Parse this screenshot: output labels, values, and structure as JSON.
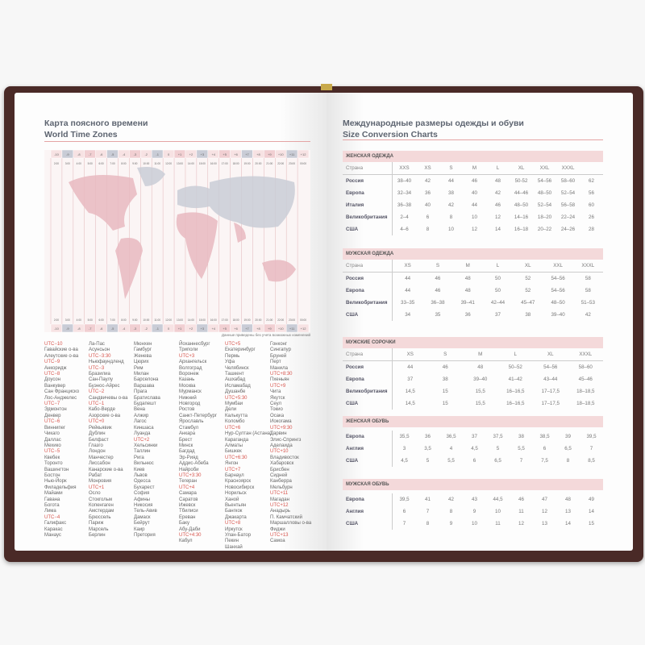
{
  "left_page": {
    "title_ru": "Карта поясного времени",
    "title_en": "World Time Zones",
    "zones": [
      "-10",
      "-9",
      "-8",
      "-7",
      "-6",
      "-5",
      "-4",
      "-3",
      "-2",
      "-1",
      "0",
      "+1",
      "+2",
      "+3",
      "+4",
      "+5",
      "+6",
      "+7",
      "+8",
      "+9",
      "+10",
      "+11",
      "+12"
    ],
    "times": [
      "2:00",
      "3:00",
      "4:00",
      "5:00",
      "6:00",
      "7:00",
      "8:00",
      "9:00",
      "10:00",
      "11:00",
      "12:00",
      "13:00",
      "14:00",
      "15:00",
      "16:00",
      "17:00",
      "18:00",
      "19:00",
      "20:00",
      "21:00",
      "22:00",
      "23:00",
      "00:00"
    ],
    "note": "Данные приведены без учета возможных изменений",
    "city_columns": [
      [
        "UTC−10",
        "Гавайские о-ва",
        "Алеутские о-ва",
        "UTC−9",
        "Анкоридж",
        "UTC−8",
        "Доусон",
        "Ванкувер",
        "Сан Франциско",
        "Лос-Анджелес",
        "UTC−7",
        "Эдмонтон",
        "Денвер",
        "UTC−6",
        "Виннипег",
        "Чикаго",
        "Даллас",
        "Мехико",
        "UTC−5",
        "Квебек",
        "Торонто",
        "Вашингтон",
        "Бостон",
        "Нью-Йорк",
        "Филадельфия",
        "Майами",
        "Гавана",
        "Богота",
        "Лима",
        "UTC−4",
        "Галифакс",
        "Каракас",
        "Манаус"
      ],
      [
        "Ла-Пас",
        "Асунсьон",
        "UTC−3:30",
        "Ньюфаундленд",
        "UTC−3",
        "Бразилиа",
        "Сан-Паулу",
        "Буэнос-Айрес",
        "UTC−2",
        "Сандвичевы о-ва",
        "UTC−1",
        "Кабо-Верде",
        "Азорские о-ва",
        "UTC+0",
        "Рейкьявик",
        "Дублин",
        "Белфаст",
        "Глазго",
        "Лондон",
        "Манчестер",
        "Лиссабон",
        "Канарские о-ва",
        "Рабат",
        "Монровия",
        "UTC+1",
        "Осло",
        "Стокгольм",
        "Копенгаген",
        "Амстердам",
        "Брюссель",
        "Париж",
        "Марсель",
        "Берлин"
      ],
      [
        "Мюнхен",
        "Гамбург",
        "Женева",
        "Цюрих",
        "Рим",
        "Милан",
        "Барселона",
        "Варшава",
        "Прага",
        "Братислава",
        "Будапешт",
        "Вена",
        "Алжир",
        "Лагос",
        "Киншаса",
        "Луанда",
        "UTC+2",
        "Хельсинки",
        "Таллин",
        "Рига",
        "Вильнюс",
        "Киев",
        "Львов",
        "Одесса",
        "Бухарест",
        "София",
        "Афины",
        "Никосия",
        "Тель-Авив",
        "Дамаск",
        "Бейрут",
        "Каир",
        "Претория"
      ],
      [
        "Йоханнесбург",
        "Триполи",
        "UTC+3",
        "Архангельск",
        "Волгоград",
        "Воронеж",
        "Казань",
        "Москва",
        "Мурманск",
        "Нижний",
        "Новгород",
        "Ростов",
        "Санкт-Петербург",
        "Ярославль",
        "Стамбул",
        "Анкара",
        "Брест",
        "Минск",
        "Багдад",
        "Эр-Рияд",
        "Аддис-Абеба",
        "Найроби",
        "UTC+3:30",
        "Тегеран",
        "UTC+4",
        "Самара",
        "Саратов",
        "Ижевск",
        "Тбилиси",
        "Ереван",
        "Баку",
        "Абу-Даби",
        "UTC+4:30",
        "Кабул"
      ],
      [
        "UTC+5",
        "Екатеринбург",
        "Пермь",
        "Уфа",
        "Челябинск",
        "Ташкент",
        "Ашхабад",
        "Исламабад",
        "Душанбе",
        "UTC+5:30",
        "Мумбаи",
        "Дели",
        "Калькутта",
        "Коломбо",
        "UTC+6",
        "Нур-Султан (Астана)",
        "Караганда",
        "Алматы",
        "Бишкек",
        "UTC+6:30",
        "Янгон",
        "UTC+7",
        "Барнаул",
        "Красноярск",
        "Новосибирск",
        "Норильск",
        "Ханой",
        "Вьентьян",
        "Бангкок",
        "Джакарта",
        "UTC+8",
        "Иркутск",
        "Улан-Батор",
        "Пекин",
        "Шанхай"
      ],
      [
        "Гонконг",
        "Сингапур",
        "Бруней",
        "Перт",
        "Манила",
        "UTC+8:30",
        "Пхеньян",
        "UTC+9",
        "Чита",
        "Якутск",
        "Сеул",
        "Токио",
        "Осака",
        "Иокогама",
        "UTC+9:30",
        "Дарвин",
        "Элис-Спрингз",
        "Аделаида",
        "UTC+10",
        "Владивосток",
        "Хабаровск",
        "Брисбен",
        "Сидней",
        "Канберра",
        "Мельбурн",
        "UTC+11",
        "Магадан",
        "UTC+12",
        "Анадырь",
        "П. Камчатский",
        "Маршалловы о-ва",
        "Фиджи",
        "UTC+13",
        "Самоа"
      ]
    ]
  },
  "right_page": {
    "title_ru": "Международные размеры одежды и обуви",
    "title_en": "Size Conversion Charts",
    "tables": [
      {
        "title": "ЖЕНСКАЯ ОДЕЖДА",
        "header": [
          "Страна",
          "XXS",
          "XS",
          "S",
          "M",
          "L",
          "XL",
          "XXL",
          "XXXL",
          ""
        ],
        "rows": [
          [
            "Россия",
            "38–40",
            "42",
            "44",
            "46",
            "48",
            "50-52",
            "54–56",
            "58–60",
            "62"
          ],
          [
            "Европа",
            "32–34",
            "36",
            "38",
            "40",
            "42",
            "44–46",
            "48–50",
            "52–54",
            "56"
          ],
          [
            "Италия",
            "36–38",
            "40",
            "42",
            "44",
            "46",
            "48–50",
            "52–54",
            "56–58",
            "60"
          ],
          [
            "Великобритания",
            "2–4",
            "6",
            "8",
            "10",
            "12",
            "14–16",
            "18–20",
            "22–24",
            "26"
          ],
          [
            "США",
            "4–6",
            "8",
            "10",
            "12",
            "14",
            "16–18",
            "20–22",
            "24–26",
            "28"
          ]
        ]
      },
      {
        "title": "МУЖСКАЯ ОДЕЖДА",
        "header": [
          "Страна",
          "XS",
          "S",
          "M",
          "L",
          "XL",
          "XXL",
          "XXXL"
        ],
        "rows": [
          [
            "Россия",
            "44",
            "46",
            "48",
            "50",
            "52",
            "54–56",
            "58"
          ],
          [
            "Европа",
            "44",
            "46",
            "48",
            "50",
            "52",
            "54–56",
            "58"
          ],
          [
            "Великобритания",
            "33–35",
            "36–38",
            "39–41",
            "42–44",
            "45–47",
            "48–50",
            "51–53"
          ],
          [
            "США",
            "34",
            "35",
            "36",
            "37",
            "38",
            "39–40",
            "42"
          ]
        ]
      },
      {
        "title": "МУЖСКИЕ СОРОЧКИ",
        "header": [
          "Страна",
          "XS",
          "S",
          "M",
          "L",
          "XL",
          "XXXL"
        ],
        "rows": [
          [
            "Россия",
            "44",
            "46",
            "48",
            "50–52",
            "54–56",
            "58–60"
          ],
          [
            "Европа",
            "37",
            "38",
            "39–40",
            "41–42",
            "43–44",
            "45–46"
          ],
          [
            "Великобритания",
            "14,5",
            "15",
            "15,5",
            "16–16,5",
            "17–17,5",
            "18–18,5"
          ],
          [
            "США",
            "14,5",
            "15",
            "15,5",
            "16–16,5",
            "17–17,5",
            "18–18,5"
          ]
        ]
      },
      {
        "title": "ЖЕНСКАЯ ОБУВЬ",
        "header": null,
        "rows": [
          [
            "Европа",
            "35,5",
            "36",
            "36,5",
            "37",
            "37,5",
            "38",
            "38,5",
            "39",
            "39,5"
          ],
          [
            "Англия",
            "3",
            "3,5",
            "4",
            "4,5",
            "5",
            "5,5",
            "6",
            "6,5",
            "7"
          ],
          [
            "США",
            "4,5",
            "5",
            "5,5",
            "6",
            "6,5",
            "7",
            "7,5",
            "8",
            "8,5"
          ]
        ]
      },
      {
        "title": "МУЖСКАЯ ОБУВЬ",
        "header": null,
        "rows": [
          [
            "Европа",
            "39,5",
            "41",
            "42",
            "43",
            "44,5",
            "46",
            "47",
            "48",
            "49"
          ],
          [
            "Англия",
            "6",
            "7",
            "8",
            "9",
            "10",
            "11",
            "12",
            "13",
            "14"
          ],
          [
            "США",
            "7",
            "8",
            "9",
            "10",
            "11",
            "12",
            "13",
            "14",
            "15"
          ]
        ]
      }
    ]
  },
  "colors": {
    "cover": "#4a2a27",
    "accent_red": "#d7544c",
    "table_header_bg": "#f4d9da",
    "title": "#5d6470"
  }
}
